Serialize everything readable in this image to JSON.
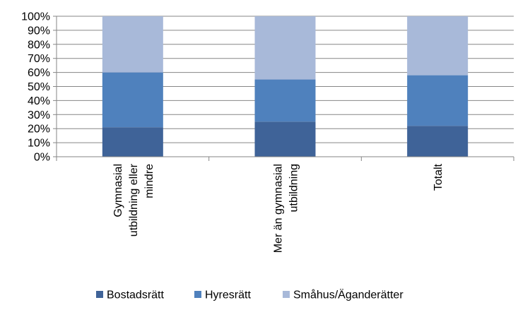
{
  "chart_data": {
    "type": "bar",
    "stacked": true,
    "percent": true,
    "categories": [
      [
        "Gymnasial",
        "utbildning eller",
        "mindre"
      ],
      [
        "Mer än gymnasial",
        "utbildning"
      ],
      [
        "Totalt"
      ]
    ],
    "series": [
      {
        "name": "Bostadsrätt",
        "color": "#3F6398",
        "values": [
          21,
          25,
          22
        ]
      },
      {
        "name": "Hyresrätt",
        "color": "#4F81BD",
        "values": [
          39,
          30,
          36
        ]
      },
      {
        "name": "Småhus/Äganderätter",
        "color": "#A8B9D9",
        "values": [
          40,
          45,
          42
        ]
      }
    ],
    "ylim": [
      0,
      100
    ],
    "yticks": [
      "0%",
      "10%",
      "20%",
      "30%",
      "40%",
      "50%",
      "60%",
      "70%",
      "80%",
      "90%",
      "100%"
    ],
    "grid": true,
    "legend_position": "bottom"
  }
}
